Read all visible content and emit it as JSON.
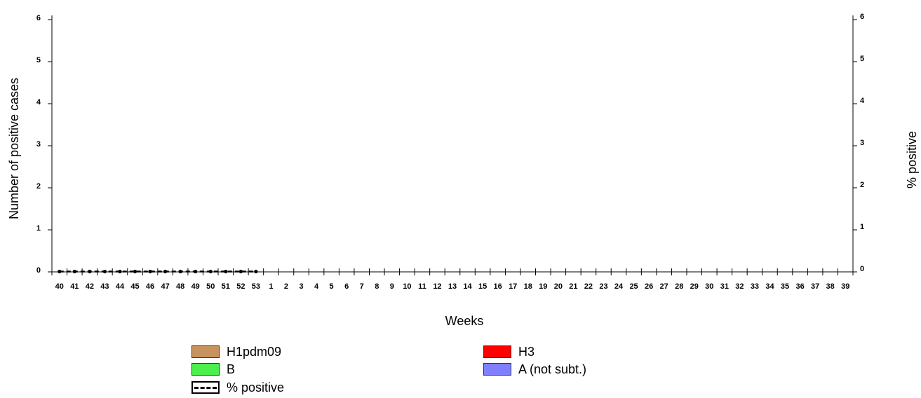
{
  "chart_data": {
    "type": "bar",
    "title": "",
    "xlabel": "Weeks",
    "ylabel": "Number of positive cases",
    "y2label": "% positive",
    "ylim": [
      0,
      6
    ],
    "y2lim": [
      0,
      6
    ],
    "yticks": [
      "0",
      "1",
      "2",
      "3",
      "4",
      "5",
      "6"
    ],
    "y2ticks": [
      "0",
      "1",
      "2",
      "3",
      "4",
      "5",
      "6"
    ],
    "categories": [
      "40",
      "41",
      "42",
      "43",
      "44",
      "45",
      "46",
      "47",
      "48",
      "49",
      "50",
      "51",
      "52",
      "53",
      "1",
      "2",
      "3",
      "4",
      "5",
      "6",
      "7",
      "8",
      "9",
      "10",
      "11",
      "12",
      "13",
      "14",
      "15",
      "16",
      "17",
      "18",
      "19",
      "20",
      "21",
      "22",
      "23",
      "24",
      "25",
      "26",
      "27",
      "28",
      "29",
      "30",
      "31",
      "32",
      "33",
      "34",
      "35",
      "36",
      "37",
      "38",
      "39"
    ],
    "series": [
      {
        "name": "H1pdm09",
        "color": "#c8925e",
        "values": [
          0,
          0,
          0,
          0,
          0,
          0,
          0,
          0,
          0,
          0,
          0,
          0,
          0,
          0,
          null,
          null,
          null,
          null,
          null,
          null,
          null,
          null,
          null,
          null,
          null,
          null,
          null,
          null,
          null,
          null,
          null,
          null,
          null,
          null,
          null,
          null,
          null,
          null,
          null,
          null,
          null,
          null,
          null,
          null,
          null,
          null,
          null,
          null,
          null,
          null,
          null,
          null,
          null
        ]
      },
      {
        "name": "H3",
        "color": "#ff0000",
        "values": [
          0,
          0,
          0,
          0,
          0,
          0,
          0,
          0,
          0,
          0,
          0,
          0,
          0,
          0,
          null,
          null,
          null,
          null,
          null,
          null,
          null,
          null,
          null,
          null,
          null,
          null,
          null,
          null,
          null,
          null,
          null,
          null,
          null,
          null,
          null,
          null,
          null,
          null,
          null,
          null,
          null,
          null,
          null,
          null,
          null,
          null,
          null,
          null,
          null,
          null,
          null,
          null,
          null
        ]
      },
      {
        "name": "B",
        "color": "#4cf04c",
        "values": [
          0,
          0,
          0,
          0,
          0,
          0,
          0,
          0,
          0,
          0,
          0,
          0,
          0,
          0,
          null,
          null,
          null,
          null,
          null,
          null,
          null,
          null,
          null,
          null,
          null,
          null,
          null,
          null,
          null,
          null,
          null,
          null,
          null,
          null,
          null,
          null,
          null,
          null,
          null,
          null,
          null,
          null,
          null,
          null,
          null,
          null,
          null,
          null,
          null,
          null,
          null,
          null,
          null
        ]
      },
      {
        "name": "A (not subt.)",
        "color": "#8080ff",
        "values": [
          0,
          0,
          0,
          0,
          0,
          0,
          0,
          0,
          0,
          0,
          0,
          0,
          0,
          0,
          null,
          null,
          null,
          null,
          null,
          null,
          null,
          null,
          null,
          null,
          null,
          null,
          null,
          null,
          null,
          null,
          null,
          null,
          null,
          null,
          null,
          null,
          null,
          null,
          null,
          null,
          null,
          null,
          null,
          null,
          null,
          null,
          null,
          null,
          null,
          null,
          null,
          null,
          null
        ]
      },
      {
        "name": "% positive",
        "color": "#000000",
        "style": "dashed-line",
        "axis": "right",
        "values": [
          0,
          0,
          0,
          0,
          0,
          0,
          0,
          0,
          0,
          0,
          0,
          0,
          0,
          0,
          null,
          null,
          null,
          null,
          null,
          null,
          null,
          null,
          null,
          null,
          null,
          null,
          null,
          null,
          null,
          null,
          null,
          null,
          null,
          null,
          null,
          null,
          null,
          null,
          null,
          null,
          null,
          null,
          null,
          null,
          null,
          null,
          null,
          null,
          null,
          null,
          null,
          null,
          null
        ]
      }
    ],
    "grid": false,
    "legend_position": "bottom"
  },
  "legend": {
    "items": [
      {
        "label": "H1pdm09",
        "color": "#c8925e"
      },
      {
        "label": "H3",
        "color": "#ff0000"
      },
      {
        "label": "B",
        "color": "#4cf04c"
      },
      {
        "label": "A (not subt.)",
        "color": "#8080ff"
      },
      {
        "label": "% positive",
        "color": "#000000"
      }
    ]
  }
}
